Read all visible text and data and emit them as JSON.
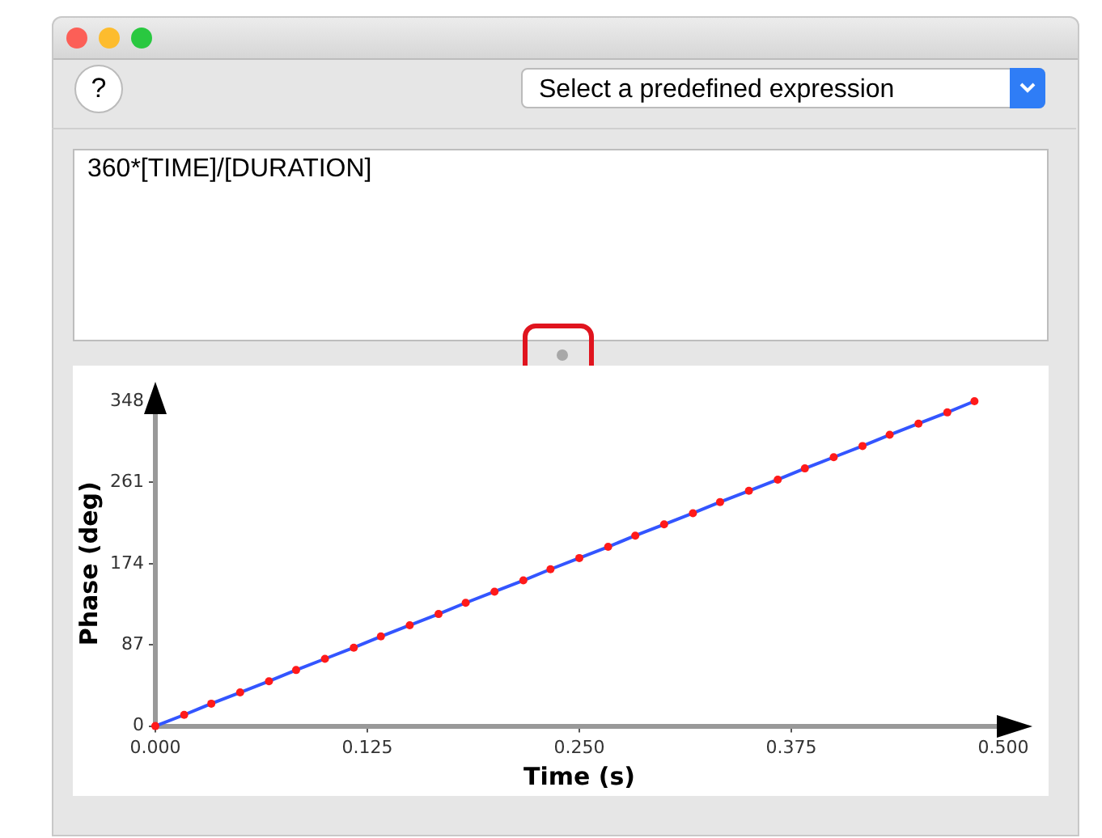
{
  "chart_data": {
    "type": "line",
    "xlabel": "Time (s)",
    "ylabel": "Phase (deg)",
    "annotations": [
      "?",
      "Select a predefined expression",
      "360*[TIME]/[DURATION]"
    ],
    "x": [
      0,
      0.017,
      0.033,
      0.05,
      0.067,
      0.083,
      0.1,
      0.117,
      0.133,
      0.15,
      0.167,
      0.183,
      0.2,
      0.217,
      0.233,
      0.25,
      0.267,
      0.283,
      0.3,
      0.317,
      0.333,
      0.35,
      0.367,
      0.383,
      0.4,
      0.417,
      0.433,
      0.45,
      0.467,
      0.483
    ],
    "series": [
      {
        "color": "#3355ff",
        "marker": "none",
        "values": [
          0,
          12,
          24,
          36,
          48,
          60,
          72,
          84,
          96,
          108,
          120,
          132,
          144,
          156,
          168,
          180,
          192,
          204,
          216,
          228,
          240,
          252,
          264,
          276,
          288,
          300,
          312,
          324,
          336,
          348
        ]
      },
      {
        "type": "scatter",
        "color": "#ff1a1a",
        "marker": "circle",
        "values": [
          0,
          12,
          24,
          36,
          48,
          60,
          72,
          84,
          96,
          108,
          120,
          132,
          144,
          156,
          168,
          180,
          192,
          204,
          216,
          228,
          240,
          252,
          264,
          276,
          288,
          300,
          312,
          324,
          336,
          348
        ]
      }
    ],
    "xlim": [
      0,
      0.5
    ],
    "xticks": [
      {
        "value": 0,
        "label": "0.000"
      },
      {
        "value": 0.125,
        "label": "0.125"
      },
      {
        "value": 0.25,
        "label": "0.250"
      },
      {
        "value": 0.375,
        "label": "0.375"
      },
      {
        "value": 0.5,
        "label": "0.500"
      }
    ],
    "ylim": [
      0,
      348
    ],
    "yticks": [
      0,
      87,
      174,
      261,
      348
    ],
    "grid": false,
    "legend": false
  }
}
